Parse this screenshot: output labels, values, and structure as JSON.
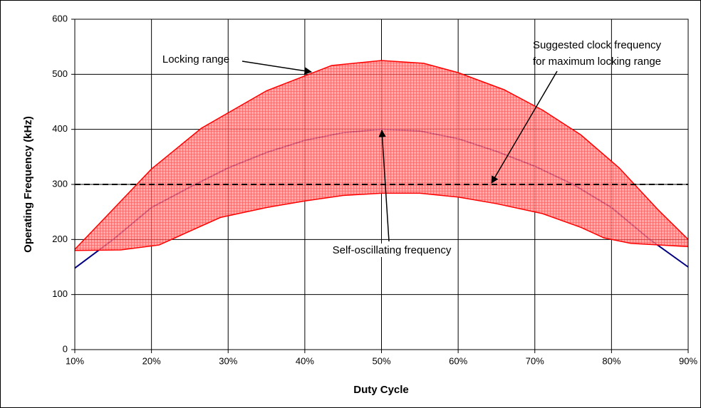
{
  "chart_data": {
    "type": "band_line",
    "x_label": "Duty Cycle",
    "y_label": "Operating Frequency (kHz)",
    "xlim": [
      10,
      90
    ],
    "xticks": [
      {
        "value": 10,
        "label": "10%"
      },
      {
        "value": 20,
        "label": "20%"
      },
      {
        "value": 30,
        "label": "30%"
      },
      {
        "value": 40,
        "label": "40%"
      },
      {
        "value": 50,
        "label": "50%"
      },
      {
        "value": 60,
        "label": "60%"
      },
      {
        "value": 70,
        "label": "70%"
      },
      {
        "value": 80,
        "label": "80%"
      },
      {
        "value": 90,
        "label": "90%"
      }
    ],
    "ylim": [
      0,
      600
    ],
    "yticks": [
      0,
      100,
      200,
      300,
      400,
      500,
      600
    ],
    "grid": true,
    "band": {
      "color": "#ff0000",
      "upper": {
        "x": [
          10,
          20,
          26.5,
          35,
          43.5,
          50,
          55.5,
          60,
          66,
          71,
          76,
          81,
          86,
          90
        ],
        "values": [
          182,
          328,
          402,
          470,
          516,
          525,
          520,
          503,
          472,
          435,
          390,
          330,
          255,
          200
        ]
      },
      "lower": {
        "x": [
          10,
          16,
          21,
          25,
          29,
          35,
          40,
          45,
          50,
          55,
          60,
          65,
          71,
          76,
          79,
          82.5,
          90
        ],
        "values": [
          180,
          181,
          190,
          215,
          240,
          258,
          270,
          280,
          284,
          284,
          277,
          265,
          247,
          222,
          203,
          193,
          187
        ]
      }
    },
    "series": [
      {
        "color": "#000080",
        "x": [
          10,
          15,
          20,
          25,
          30,
          35,
          40,
          45,
          50,
          55,
          60,
          65,
          70,
          75,
          80,
          85,
          90
        ],
        "values": [
          148,
          200,
          258,
          295,
          330,
          358,
          380,
          394,
          400,
          397,
          383,
          360,
          333,
          300,
          258,
          200,
          150
        ]
      }
    ],
    "reference_line": {
      "value": 300,
      "color": "#000000"
    },
    "annotations": [
      {
        "text": "Locking range"
      },
      {
        "text": "Suggested clock frequency"
      },
      {
        "text": "for maximum locking range"
      },
      {
        "text": "Self-oscillating frequency"
      }
    ]
  }
}
